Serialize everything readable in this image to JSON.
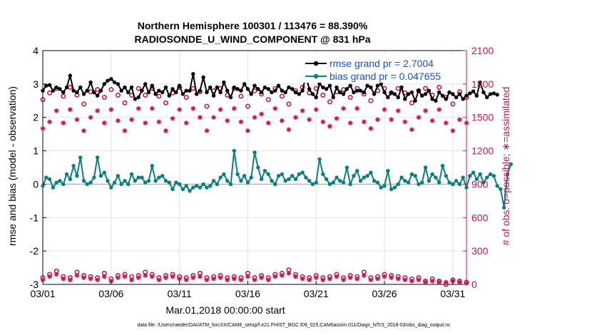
{
  "chart_data": {
    "type": "line",
    "title": "Northern Hemisphere 100301 / 113476 = 88.390%",
    "subtitle": "RADIOSONDE_U_WIND_COMPONENT @ 831 hPa",
    "xlabel": "Mar.01,2018 00:00:00 start",
    "ylabel_left": "rmse and bias (model - observation)",
    "ylabel_right": "# of obs: o=possible; ∗=assimilated",
    "ylim_left": [
      -3,
      4
    ],
    "ylim_right": [
      0,
      2100
    ],
    "xlim_days": [
      1,
      32
    ],
    "x_ticks": [
      {
        "day": 1,
        "label": "03/01"
      },
      {
        "day": 6,
        "label": "03/06"
      },
      {
        "day": 11,
        "label": "03/11"
      },
      {
        "day": 16,
        "label": "03/16"
      },
      {
        "day": 21,
        "label": "03/21"
      },
      {
        "day": 26,
        "label": "03/26"
      },
      {
        "day": 31,
        "label": "03/31"
      }
    ],
    "y_ticks_left": [
      "-3",
      "-2",
      "-1",
      "0",
      "1",
      "2",
      "3",
      "4"
    ],
    "y_ticks_right": [
      "0",
      "300",
      "600",
      "900",
      "1200",
      "1500",
      "1800",
      "2100"
    ],
    "legend": [
      "rmse grand pr = 2.7004",
      "bias grand pr = 0.047655"
    ],
    "footer": "data file: /Users/raeder/DAI/ATM_forcXX/CAM6_setup/f.e21.FHIST_BGC.f09_025.CAM6assim.011/Diags_NTrS_2018-03/obs_diag_output.nc",
    "colors": {
      "rmse": "#000000",
      "bias": "#0a7f80",
      "count": "#c8174e",
      "legend_text": "#1a4fd6"
    },
    "series": [
      {
        "name": "rmse",
        "x_start": 1.0,
        "x_step": 0.25,
        "values": [
          2.8,
          2.95,
          2.97,
          2.8,
          2.9,
          2.85,
          2.75,
          2.9,
          3.25,
          2.8,
          2.75,
          2.9,
          2.7,
          2.8,
          3.05,
          2.75,
          2.65,
          2.8,
          3.0,
          3.1,
          3.15,
          3.05,
          3.0,
          2.8,
          2.9,
          2.75,
          2.9,
          2.55,
          2.6,
          2.8,
          3.0,
          2.75,
          2.95,
          2.7,
          2.8,
          2.75,
          2.9,
          2.65,
          2.85,
          2.75,
          2.95,
          2.7,
          2.8,
          2.8,
          3.3,
          2.7,
          2.8,
          3.2,
          2.75,
          2.9,
          2.65,
          2.9,
          2.75,
          3.05,
          2.8,
          2.6,
          2.9,
          2.85,
          2.8,
          3.0,
          2.85,
          2.7,
          2.95,
          2.85,
          2.75,
          2.9,
          2.85,
          2.75,
          2.8,
          2.95,
          2.8,
          2.75,
          2.9,
          2.85,
          2.75,
          2.7,
          2.8,
          3.25,
          2.85,
          2.7,
          2.6,
          3.0,
          2.9,
          2.85,
          2.95,
          2.6,
          2.9,
          2.75,
          2.7,
          2.85,
          2.95,
          2.75,
          2.8,
          2.8,
          2.75,
          2.95,
          2.9,
          2.7,
          2.95,
          3.0,
          2.75,
          2.6,
          2.75,
          2.7,
          2.6,
          2.9,
          2.55,
          2.7,
          2.75,
          2.5,
          2.8,
          2.65,
          2.7,
          2.8,
          2.55,
          2.5,
          2.75,
          2.65,
          2.55,
          2.75,
          2.7,
          2.6,
          2.7,
          2.55,
          2.65,
          2.72,
          2.78,
          2.65,
          3.05,
          2.75,
          2.6,
          2.7,
          2.72,
          2.68
        ]
      },
      {
        "name": "bias",
        "x_start": 1.0,
        "x_step": 0.25,
        "values": [
          -0.05,
          0.2,
          0.15,
          -0.1,
          0.05,
          0.1,
          0.0,
          0.3,
          0.15,
          0.55,
          0.25,
          0.8,
          0.1,
          0.0,
          0.05,
          0.2,
          0.8,
          0.25,
          0.35,
          0.1,
          -0.1,
          0.05,
          0.25,
          0.0,
          0.1,
          0.0,
          0.3,
          0.1,
          0.2,
          0.2,
          0.05,
          0.1,
          0.55,
          0.1,
          0.2,
          0.25,
          0.1,
          0.05,
          -0.15,
          0.05,
          0.0,
          -0.15,
          -0.05,
          -0.2,
          -0.1,
          -0.05,
          -0.1,
          0.0,
          -0.1,
          -0.05,
          0.1,
          0.0,
          0.2,
          0.3,
          0.1,
          0.0,
          1.0,
          0.3,
          0.1,
          0.25,
          0.05,
          0.2,
          0.95,
          0.5,
          0.15,
          0.4,
          0.3,
          0.1,
          0.0,
          0.25,
          0.3,
          0.1,
          0.15,
          0.25,
          0.15,
          0.3,
          0.35,
          0.2,
          0.1,
          0.0,
          0.05,
          0.75,
          0.3,
          0.15,
          0.0,
          0.05,
          0.2,
          0.1,
          0.05,
          0.5,
          0.0,
          0.25,
          0.4,
          0.1,
          0.2,
          0.25,
          0.35,
          0.1,
          0.05,
          -0.1,
          -0.05,
          0.4,
          -0.15,
          -0.1,
          0.0,
          0.2,
          0.1,
          0.05,
          0.3,
          0.25,
          0.0,
          0.05,
          0.5,
          0.1,
          0.3,
          0.2,
          0.05,
          0.55,
          0.25,
          0.05,
          0.0,
          0.1,
          0.0,
          0.2,
          -0.1,
          0.25,
          0.35,
          0.15,
          0.3,
          0.05,
          0.2,
          0.3,
          0.25,
          -0.05,
          -0.15,
          -0.7,
          0.3,
          0.6
        ]
      },
      {
        "name": "possible",
        "x_start": 1.0,
        "x_step": 0.5,
        "values": [
          1660,
          1720,
          1760,
          1690,
          1770,
          1700,
          1620,
          1730,
          1750,
          1680,
          1750,
          1700,
          1630,
          1700,
          1760,
          1700,
          1760,
          1690,
          1630,
          1720,
          1770,
          1680,
          1760,
          1730,
          1600,
          1740,
          1760,
          1700,
          1760,
          1690,
          1600,
          1740,
          1710,
          1660,
          1760,
          1690,
          1620,
          1740,
          1770,
          1720,
          1760,
          1700,
          1640,
          1730,
          1750,
          1680,
          1760,
          1710,
          1650,
          1740,
          1760,
          1720,
          1760,
          1720,
          1630,
          1740,
          1760,
          1700,
          1770,
          1680,
          1620,
          1730,
          1680
        ],
        "bottom_values": [
          60,
          90,
          120,
          70,
          60,
          110,
          80,
          70,
          60,
          100,
          50,
          80,
          90,
          70,
          80,
          110,
          90,
          60,
          80,
          90,
          70,
          60,
          80,
          100,
          60,
          70,
          80,
          60,
          70,
          60,
          100,
          60,
          80,
          60,
          90,
          100,
          130,
          90,
          70,
          60,
          80,
          60,
          70,
          90,
          60,
          80,
          70,
          110,
          60,
          70,
          90,
          80,
          70,
          60,
          50,
          60,
          30,
          50,
          30,
          0,
          40,
          30,
          20
        ]
      },
      {
        "name": "assimilated",
        "x_start": 1.0,
        "x_step": 0.5,
        "values": [
          1400,
          1460,
          1560,
          1450,
          1570,
          1480,
          1380,
          1500,
          1560,
          1450,
          1570,
          1470,
          1380,
          1480,
          1580,
          1450,
          1580,
          1460,
          1380,
          1490,
          1570,
          1450,
          1580,
          1500,
          1380,
          1500,
          1570,
          1470,
          1580,
          1460,
          1380,
          1500,
          1530,
          1450,
          1580,
          1470,
          1390,
          1500,
          1560,
          1480,
          1570,
          1460,
          1420,
          1490,
          1580,
          1450,
          1580,
          1460,
          1400,
          1480,
          1570,
          1480,
          1560,
          1460,
          1390,
          1500,
          1560,
          1470,
          1570,
          1450,
          1380,
          1480,
          1450
        ],
        "bottom_values": [
          40,
          70,
          90,
          50,
          40,
          80,
          60,
          50,
          40,
          70,
          30,
          60,
          70,
          40,
          60,
          80,
          70,
          40,
          60,
          70,
          50,
          40,
          60,
          70,
          40,
          50,
          60,
          40,
          50,
          40,
          70,
          40,
          60,
          40,
          70,
          80,
          100,
          70,
          50,
          40,
          60,
          40,
          50,
          70,
          40,
          60,
          50,
          80,
          40,
          50,
          70,
          60,
          50,
          40,
          30,
          40,
          20,
          30,
          20,
          20,
          30,
          20,
          10
        ]
      }
    ]
  }
}
